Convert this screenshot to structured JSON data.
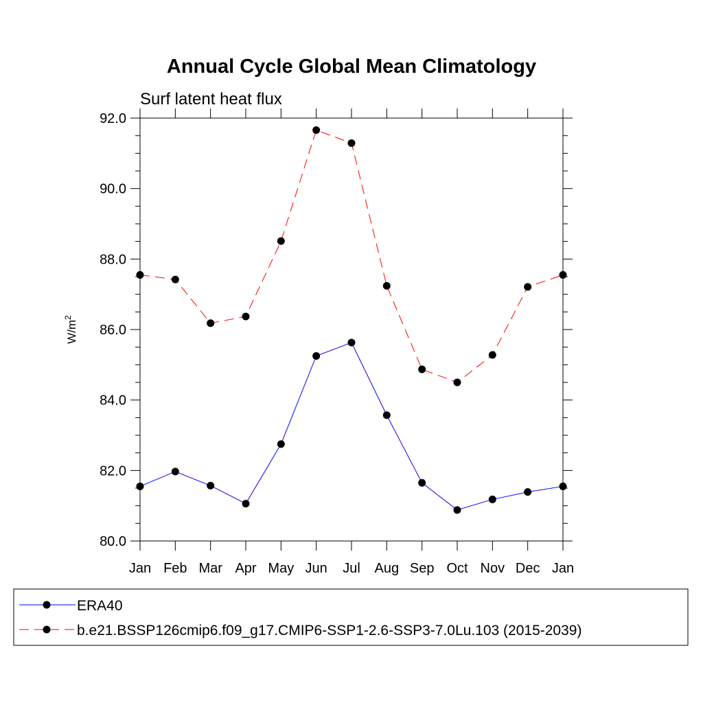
{
  "chart_data": {
    "type": "line",
    "title": "Annual Cycle Global Mean Climatology",
    "subtitle": "Surf latent heat flux",
    "ylabel_base": "W/m",
    "ylabel_sup": "2",
    "categories": [
      "Jan",
      "Feb",
      "Mar",
      "Apr",
      "May",
      "Jun",
      "Jul",
      "Aug",
      "Sep",
      "Oct",
      "Nov",
      "Dec",
      "Jan"
    ],
    "ylim": [
      80.0,
      92.0
    ],
    "yticks": [
      "80.0",
      "82.0",
      "84.0",
      "86.0",
      "88.0",
      "90.0",
      "92.0"
    ],
    "grid": false,
    "legend_position": "bottom",
    "series": [
      {
        "name": "ERA40",
        "color": "#0000ff",
        "dash": "solid",
        "values": [
          81.55,
          81.97,
          81.57,
          81.06,
          82.75,
          85.25,
          85.63,
          83.57,
          81.65,
          80.88,
          81.18,
          81.39,
          81.55
        ]
      },
      {
        "name": "b.e21.BSSP126cmip6.f09_g17.CMIP6-SSP1-2.6-SSP3-7.0Lu.103 (2015-2039)",
        "color": "#ff0000",
        "dash": "dashed",
        "values": [
          87.55,
          87.42,
          86.18,
          86.37,
          88.51,
          91.66,
          91.29,
          87.24,
          84.87,
          84.5,
          85.28,
          87.21,
          87.55
        ]
      }
    ]
  }
}
